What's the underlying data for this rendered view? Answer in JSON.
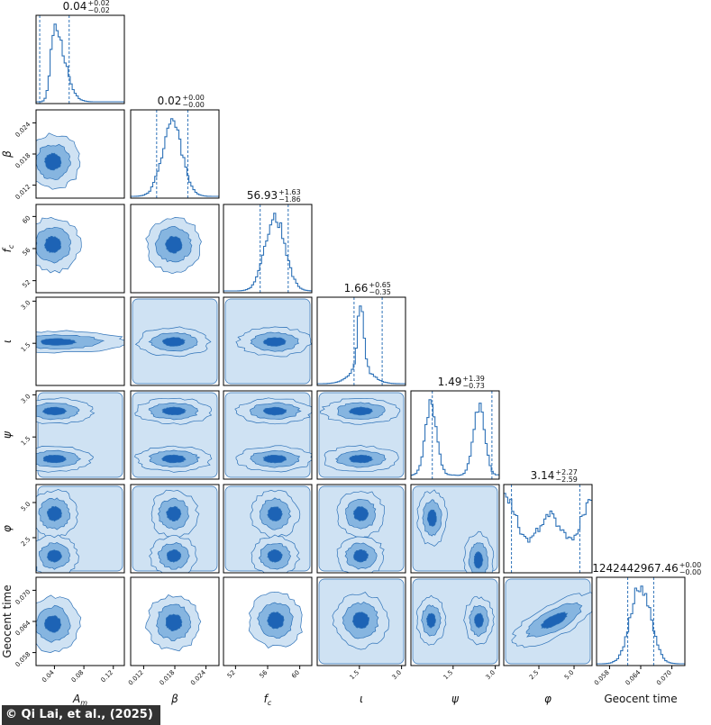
{
  "credit": "© Qi Lai, et al., (2025)",
  "chart_data": {
    "type": "corner",
    "colors": {
      "line": "#2e72b8",
      "level1": "#cfe2f3",
      "level2": "#86b5e0",
      "level3": "#3d83c9",
      "level4": "#1d63b5"
    },
    "parameters": [
      {
        "label": "A_m",
        "xlabel_display": "A",
        "xlabel_sub": "m",
        "ticks": [
          0.04,
          0.08,
          0.12
        ],
        "tick_labels": [
          "0.04",
          "0.08",
          "0.12"
        ],
        "range": [
          0.015,
          0.135
        ],
        "median_text": "0.04",
        "plus_text": "+0.02",
        "minus_text": "−0.02",
        "median": 0.04,
        "q_low": 0.02,
        "q_high": 0.06,
        "shape": "skewed"
      },
      {
        "label": "β",
        "xlabel_display": "β",
        "xlabel_sub": "",
        "ticks": [
          0.012,
          0.018,
          0.024
        ],
        "tick_labels": [
          "0.012",
          "0.018",
          "0.024"
        ],
        "range": [
          0.0095,
          0.0265
        ],
        "median_text": "0.02",
        "plus_text": "+0.00",
        "minus_text": "−0.00",
        "median": 0.0175,
        "q_low": 0.0145,
        "q_high": 0.0205,
        "shape": "gauss"
      },
      {
        "label": "f_c",
        "xlabel_display": "f",
        "xlabel_sub": "c",
        "ticks": [
          52,
          56,
          60
        ],
        "tick_labels": [
          "52",
          "56",
          "60"
        ],
        "range": [
          50.5,
          61.5
        ],
        "median_text": "56.93",
        "plus_text": "+1.63",
        "minus_text": "−1.86",
        "median": 56.93,
        "q_low": 55.07,
        "q_high": 58.56,
        "shape": "gauss"
      },
      {
        "label": "ι",
        "xlabel_display": "ι",
        "xlabel_sub": "",
        "ticks": [
          1.5,
          3.0
        ],
        "tick_labels": [
          "1.5",
          "3.0"
        ],
        "range": [
          0.0,
          3.14
        ],
        "median_text": "1.66",
        "plus_text": "+0.65",
        "minus_text": "−0.35",
        "median": 1.66,
        "q_low": 1.31,
        "q_high": 2.31,
        "shape": "peak"
      },
      {
        "label": "ψ",
        "xlabel_display": "ψ",
        "xlabel_sub": "",
        "ticks": [
          1.5,
          3.0
        ],
        "tick_labels": [
          "1.5",
          "3.0"
        ],
        "range": [
          0.0,
          3.14
        ],
        "median_text": "1.49",
        "plus_text": "+1.39",
        "minus_text": "−0.73",
        "median": 1.49,
        "q_low": 0.76,
        "q_high": 2.88,
        "shape": "bimodal"
      },
      {
        "label": "φ",
        "xlabel_display": "φ",
        "xlabel_sub": "",
        "ticks": [
          2.5,
          5.0
        ],
        "tick_labels": [
          "2.5",
          "5.0"
        ],
        "range": [
          0.0,
          6.28
        ],
        "median_text": "3.14",
        "plus_text": "+2.27",
        "minus_text": "−2.59",
        "median": 3.14,
        "q_low": 0.55,
        "q_high": 5.41,
        "shape": "wave"
      },
      {
        "label": "Geocent time",
        "xlabel_display": "Geocent time",
        "xlabel_sub": "",
        "ticks": [
          0.058,
          0.064,
          0.07
        ],
        "tick_labels": [
          "0.058",
          "0.064",
          "0.070"
        ],
        "range": [
          0.0555,
          0.0725
        ],
        "median_text": "1242442967.46",
        "plus_text": "+0.00",
        "minus_text": "−0.00",
        "median": 0.064,
        "q_low": 0.0615,
        "q_high": 0.0665,
        "shape": "gauss"
      }
    ],
    "pair_modes": [
      {
        "row": "β",
        "col": "A_m",
        "x_mode": 0.038,
        "y_mode": 0.0165,
        "corr": 0.2
      },
      {
        "row": "f_c",
        "col": "A_m",
        "x_mode": 0.038,
        "y_mode": 56.5,
        "corr": 0.1
      },
      {
        "row": "f_c",
        "col": "β",
        "x_mode": 0.0178,
        "y_mode": 56.5,
        "corr": 0.6
      },
      {
        "row": "ι",
        "col": "A_m",
        "x_mode": 0.04,
        "y_mode": 1.55,
        "corr": 0.0
      },
      {
        "row": "ι",
        "col": "β",
        "x_mode": 0.0178,
        "y_mode": 1.55,
        "corr": 0.0
      },
      {
        "row": "ι",
        "col": "f_c",
        "x_mode": 56.9,
        "y_mode": 1.55,
        "corr": 0.0
      },
      {
        "row": "ψ",
        "col": "A_m",
        "x_mode": 0.04,
        "y_mode": 2.35,
        "corr": 0.0
      },
      {
        "row": "ψ",
        "col": "β",
        "x_mode": 0.0178,
        "y_mode": 2.35,
        "corr": 0.0
      },
      {
        "row": "ψ",
        "col": "f_c",
        "x_mode": 56.9,
        "y_mode": 2.35,
        "corr": 0.0
      },
      {
        "row": "ψ",
        "col": "ι",
        "x_mode": 1.55,
        "y_mode": 2.35,
        "corr": 0.0
      },
      {
        "row": "φ",
        "col": "A_m",
        "x_mode": 0.04,
        "y_mode": 3.5,
        "corr": 0.0
      },
      {
        "row": "φ",
        "col": "β",
        "x_mode": 0.0178,
        "y_mode": 3.5,
        "corr": 0.0
      },
      {
        "row": "φ",
        "col": "f_c",
        "x_mode": 56.9,
        "y_mode": 3.5,
        "corr": 0.0
      },
      {
        "row": "φ",
        "col": "ι",
        "x_mode": 1.55,
        "y_mode": 3.5,
        "corr": 0.0
      },
      {
        "row": "φ",
        "col": "ψ",
        "x_mode": 0.8,
        "y_mode": 3.8,
        "corr": 0.0
      },
      {
        "row": "Geocent time",
        "col": "A_m",
        "x_mode": 0.038,
        "y_mode": 0.0635,
        "corr": 0.1
      },
      {
        "row": "Geocent time",
        "col": "β",
        "x_mode": 0.0178,
        "y_mode": 0.0638,
        "corr": 0.5
      },
      {
        "row": "Geocent time",
        "col": "f_c",
        "x_mode": 57.0,
        "y_mode": 0.0642,
        "corr": 0.75
      },
      {
        "row": "Geocent time",
        "col": "ι",
        "x_mode": 1.55,
        "y_mode": 0.0642,
        "corr": 0.0
      },
      {
        "row": "Geocent time",
        "col": "ψ",
        "x_mode": 0.8,
        "y_mode": 0.0642,
        "corr": 0.0
      },
      {
        "row": "Geocent time",
        "col": "φ",
        "x_mode": 3.6,
        "y_mode": 0.0642,
        "corr": 0.8
      }
    ]
  }
}
